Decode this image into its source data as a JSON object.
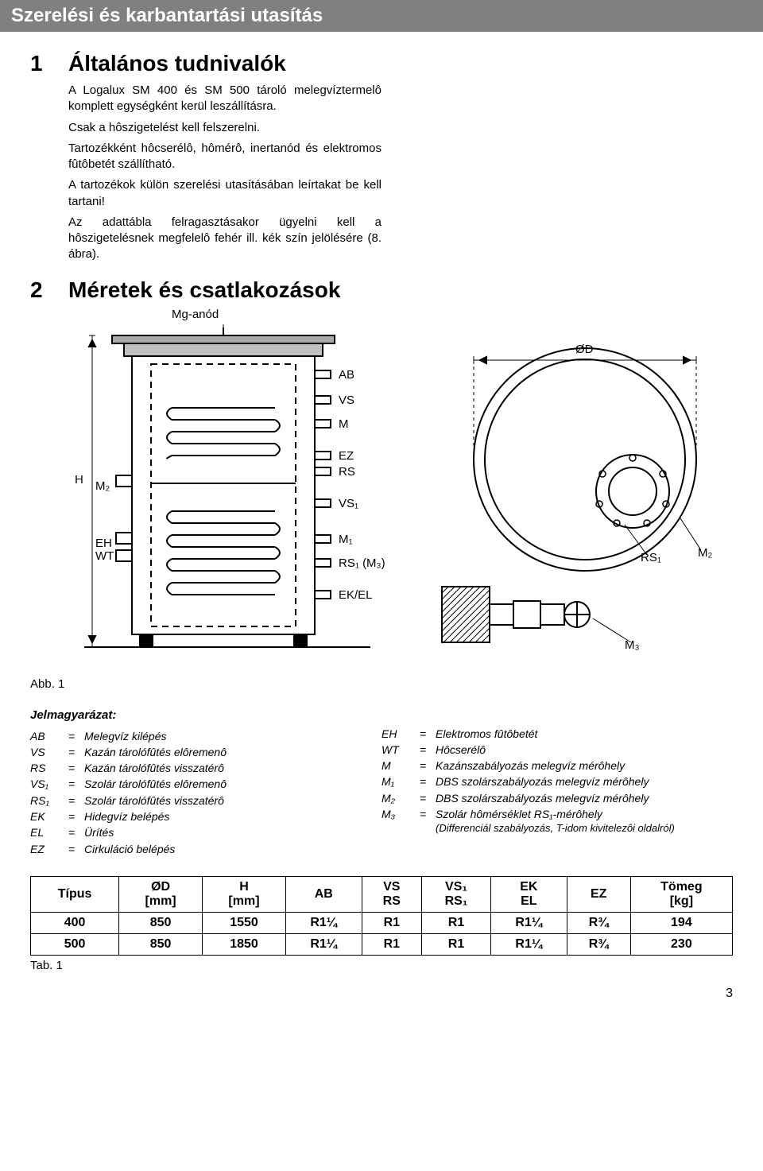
{
  "banner": "Szerelési és karbantartási utasítás",
  "section1": {
    "num": "1",
    "title": "Általános tudnivalók",
    "p1": "A Logalux SM 400 és SM 500 tároló melegvíztermelô komplett egységként kerül leszállításra.",
    "p2": "Csak a hôszigetelést kell felszerelni.",
    "p3": "Tartozékként hôcserélô, hômérô, inertanód és elektromos fûtôbetét szállítható.",
    "p4": "A tartozékok külön szerelési utasításában leírtakat be kell tartani!",
    "p5": "Az adattábla felragasztásakor ügyelni kell a hôszigetelésnek megfelelô fehér ill. kék szín jelölésére (8. ábra)."
  },
  "section2": {
    "num": "2",
    "title": "Méretek és csatlakozások"
  },
  "diagram": {
    "mg_anode": "Mg-anód",
    "labels": {
      "H": "H",
      "M2": "M₂",
      "EH": "EH",
      "WT": "WT",
      "AB": "AB",
      "VS": "VS",
      "M": "M",
      "EZ": "EZ",
      "RS": "RS",
      "VS1": "VS₁",
      "M1": "M₁",
      "RS1_M3": "RS₁ (M₃)",
      "EKEL": "EK/EL",
      "OD": "ØD",
      "RS1": "RS₁",
      "M2b": "M₂",
      "M3": "M₃"
    }
  },
  "figure_caption": "Abb. 1",
  "legend": {
    "title": "Jelmagyarázat:",
    "left": [
      {
        "k": "AB",
        "d": "Melegvíz kilépés"
      },
      {
        "k": "VS",
        "d": "Kazán tárolófûtés elôremenô"
      },
      {
        "k": "RS",
        "d": "Kazán tárolófûtés visszatérô"
      },
      {
        "k": "VS₁",
        "d": "Szolár tárolófûtés elôremenô"
      },
      {
        "k": "RS₁",
        "d": "Szolár tárolófûtés visszatérô"
      },
      {
        "k": "EK",
        "d": "Hidegvíz belépés"
      },
      {
        "k": "EL",
        "d": "Ürítés"
      },
      {
        "k": "EZ",
        "d": "Cirkuláció belépés"
      }
    ],
    "right": [
      {
        "k": "EH",
        "d": "Elektromos fûtôbetét"
      },
      {
        "k": "WT",
        "d": "Hôcserélô"
      },
      {
        "k": "M",
        "d": "Kazánszabályozás melegvíz mérôhely"
      },
      {
        "k": "M₁",
        "d": "DBS szolárszabályozás melegvíz mérôhely"
      },
      {
        "k": "M₂",
        "d": "DBS szolárszabályozás melegvíz mérôhely"
      },
      {
        "k": "M₃",
        "d": "Szolár hômérséklet RS₁-mérôhely"
      }
    ],
    "right_note": "(Differenciál szabályozás, T-idom kivitelezôi oldalról)"
  },
  "table": {
    "headers": [
      {
        "t": "Típus",
        "u": ""
      },
      {
        "t": "ØD",
        "u": "[mm]"
      },
      {
        "t": "H",
        "u": "[mm]"
      },
      {
        "t": "AB",
        "u": ""
      },
      {
        "t": "VS",
        "u": "RS"
      },
      {
        "t": "VS₁",
        "u": "RS₁"
      },
      {
        "t": "EK",
        "u": "EL"
      },
      {
        "t": "EZ",
        "u": ""
      },
      {
        "t": "Tömeg",
        "u": "[kg]"
      }
    ],
    "rows": [
      [
        "400",
        "850",
        "1550",
        "R1¼",
        "R1",
        "R1",
        "R1¼",
        "R¾",
        "194"
      ],
      [
        "500",
        "850",
        "1850",
        "R1¼",
        "R1",
        "R1",
        "R1¼",
        "R¾",
        "230"
      ]
    ],
    "caption": "Tab. 1"
  },
  "page_number": "3",
  "colors": {
    "banner_bg": "#808080",
    "banner_fg": "#ffffff",
    "text": "#000000"
  }
}
